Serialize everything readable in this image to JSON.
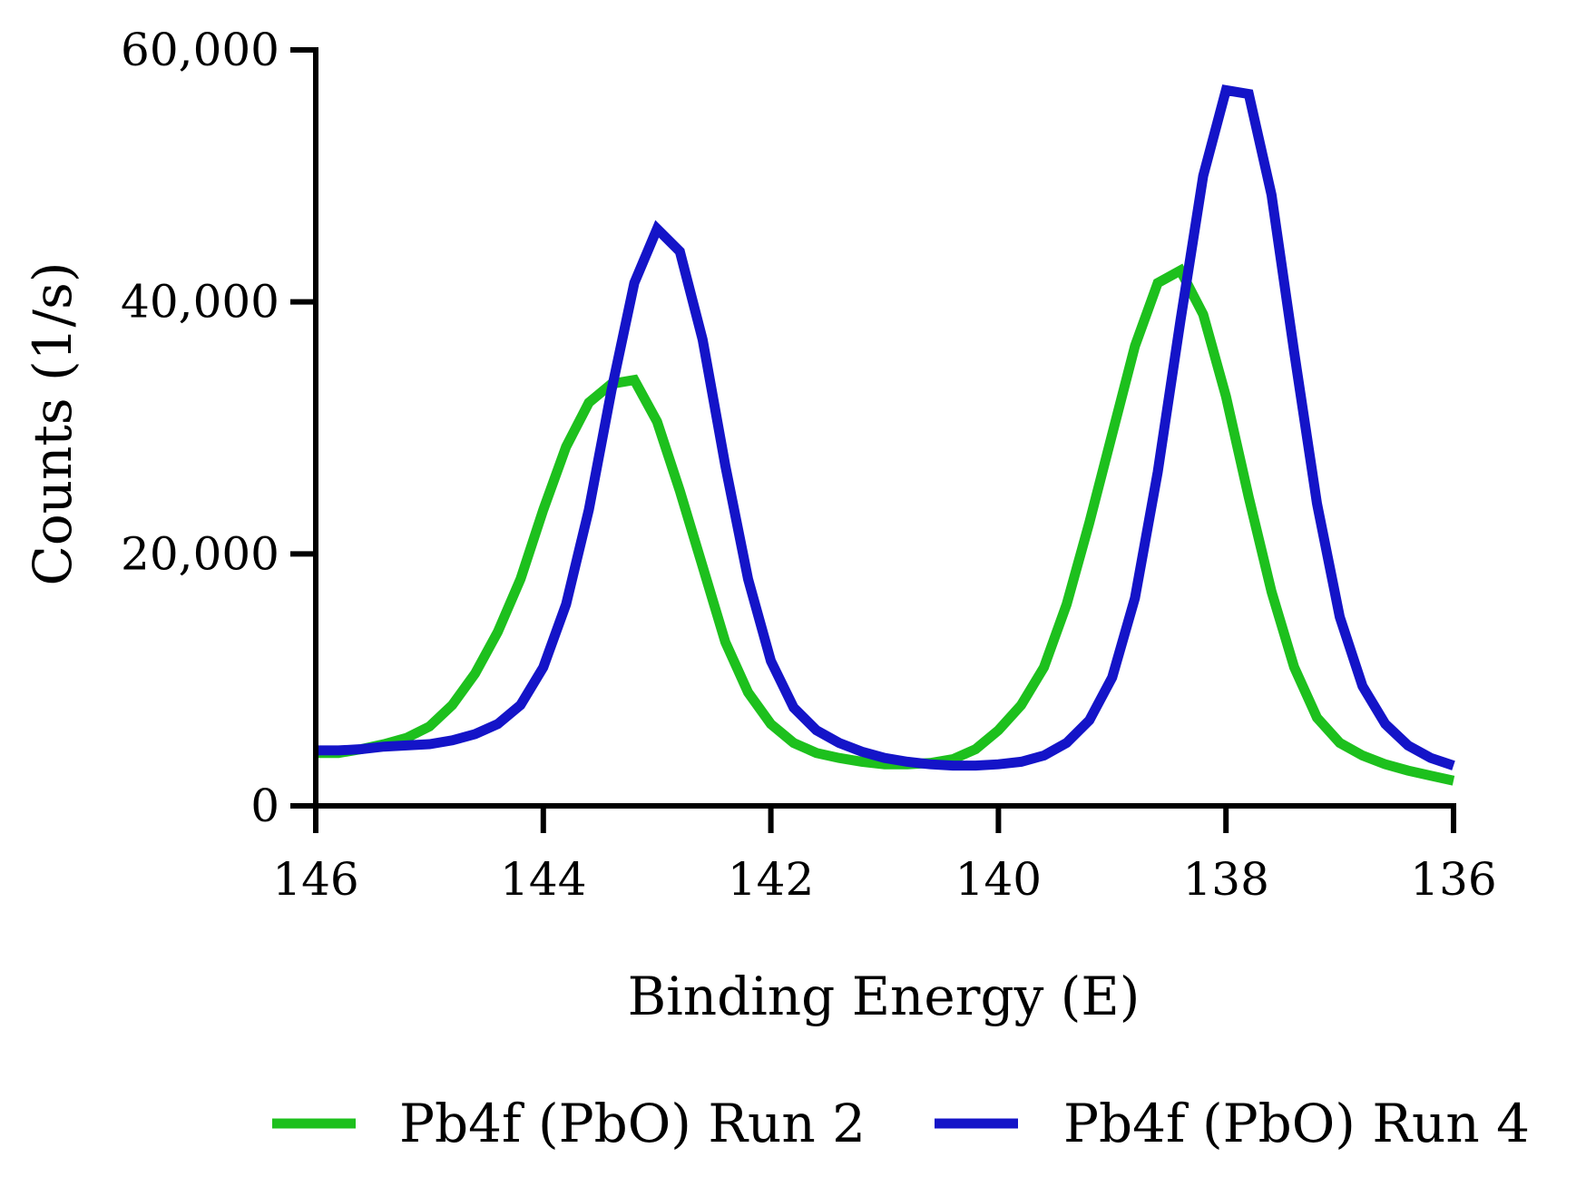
{
  "chart_data": {
    "type": "line",
    "title": "",
    "xlabel": "Binding Energy (E)",
    "ylabel": "Counts (1/s)",
    "xlim": [
      146,
      136
    ],
    "ylim": [
      0,
      60000
    ],
    "x_reversed": true,
    "grid": false,
    "legend_position": "bottom",
    "xticks": [
      146,
      144,
      142,
      140,
      138,
      136
    ],
    "xtick_labels": [
      "146",
      "144",
      "142",
      "140",
      "138",
      "136"
    ],
    "yticks": [
      0,
      20000,
      40000,
      60000
    ],
    "ytick_labels": [
      "0",
      "20,000",
      "40,000",
      "60,000"
    ],
    "series": [
      {
        "name": "Pb4f (PbO) Run 2",
        "color": "#1dc01d",
        "x": [
          146,
          145.8,
          145.6,
          145.4,
          145.2,
          145.0,
          144.8,
          144.6,
          144.4,
          144.2,
          144.0,
          143.8,
          143.6,
          143.4,
          143.2,
          143.0,
          142.8,
          142.6,
          142.4,
          142.2,
          142.0,
          141.8,
          141.6,
          141.4,
          141.2,
          141.0,
          140.8,
          140.6,
          140.4,
          140.2,
          140.0,
          139.8,
          139.6,
          139.4,
          139.2,
          139.0,
          138.8,
          138.6,
          138.4,
          138.2,
          138.0,
          137.8,
          137.6,
          137.4,
          137.2,
          137.0,
          136.8,
          136.6,
          136.4,
          136.2,
          136.0
        ],
        "y": [
          4200,
          4200,
          4500,
          4900,
          5400,
          6300,
          8000,
          10500,
          13800,
          18000,
          23500,
          28500,
          32000,
          33500,
          33800,
          30500,
          25000,
          19000,
          13000,
          9000,
          6500,
          5000,
          4200,
          3800,
          3500,
          3300,
          3300,
          3400,
          3700,
          4500,
          6000,
          8000,
          11000,
          16000,
          22500,
          29500,
          36500,
          41500,
          42500,
          39000,
          32500,
          24500,
          17000,
          11000,
          7000,
          5000,
          4000,
          3300,
          2800,
          2400,
          2000
        ]
      },
      {
        "name": "Pb4f (PbO) Run 4",
        "color": "#1414c8",
        "x": [
          146,
          145.8,
          145.6,
          145.4,
          145.2,
          145.0,
          144.8,
          144.6,
          144.4,
          144.2,
          144.0,
          143.8,
          143.6,
          143.4,
          143.2,
          143.0,
          142.8,
          142.6,
          142.4,
          142.2,
          142.0,
          141.8,
          141.6,
          141.4,
          141.2,
          141.0,
          140.8,
          140.6,
          140.4,
          140.2,
          140.0,
          139.8,
          139.6,
          139.4,
          139.2,
          139.0,
          138.8,
          138.6,
          138.4,
          138.2,
          138.0,
          137.8,
          137.6,
          137.4,
          137.2,
          137.0,
          136.8,
          136.6,
          136.4,
          136.2,
          136.0
        ],
        "y": [
          4400,
          4400,
          4500,
          4700,
          4800,
          4900,
          5200,
          5700,
          6500,
          8000,
          11000,
          16000,
          23500,
          33000,
          41500,
          45800,
          44000,
          37000,
          27000,
          18000,
          11500,
          7800,
          6000,
          5000,
          4300,
          3800,
          3500,
          3300,
          3200,
          3200,
          3300,
          3500,
          4000,
          5000,
          6800,
          10200,
          16500,
          26500,
          38500,
          50000,
          56800,
          56500,
          48500,
          36000,
          24000,
          15000,
          9500,
          6500,
          4800,
          3800,
          3200
        ]
      }
    ]
  }
}
